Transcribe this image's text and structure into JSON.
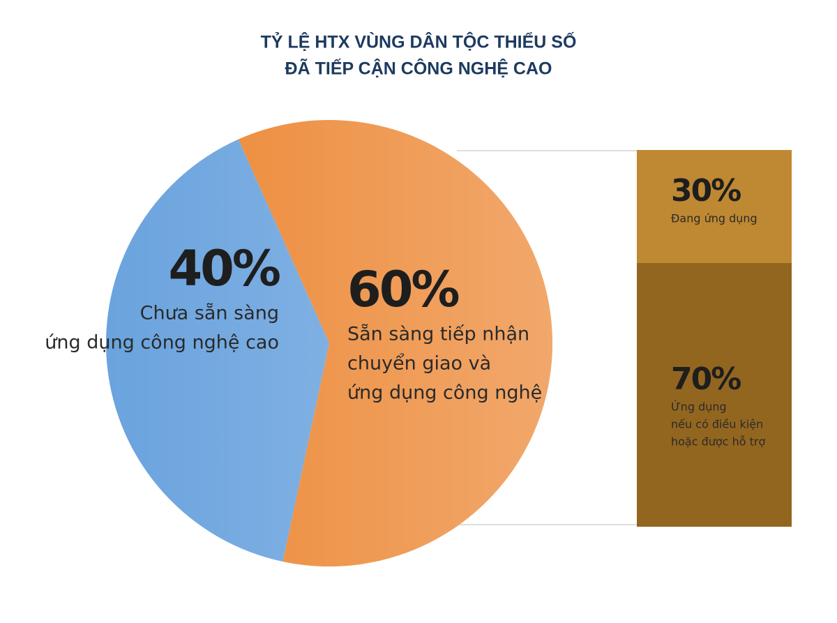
{
  "chart_data": [
    {
      "type": "pie",
      "title": [
        "TỶ LỆ HTX VÙNG DÂN TỘC THIỂU SỐ",
        "ĐÃ TIẾP CẬN CÔNG NGHỆ CAO"
      ],
      "categories": [
        [
          "Chưa sẵn sàng",
          "ứng dụng công nghệ cao"
        ],
        [
          "Sẵn sàng tiếp nhận",
          "chuyển giao và",
          "ứng dụng công nghệ"
        ]
      ],
      "values": [
        40,
        60
      ],
      "value_labels": [
        "40%",
        "60%"
      ],
      "colors": [
        "#6aa3de",
        "#ec8632"
      ]
    },
    {
      "type": "stacked-bar",
      "categories": [
        [
          "Đang ứng dụng"
        ],
        [
          "Ứng dụng",
          "nếu có điều kiện",
          "hoặc được hỗ trợ"
        ]
      ],
      "values": [
        30,
        70
      ],
      "value_labels": [
        "30%",
        "70%"
      ],
      "colors": [
        "#bf8832",
        "#93661f"
      ]
    }
  ]
}
